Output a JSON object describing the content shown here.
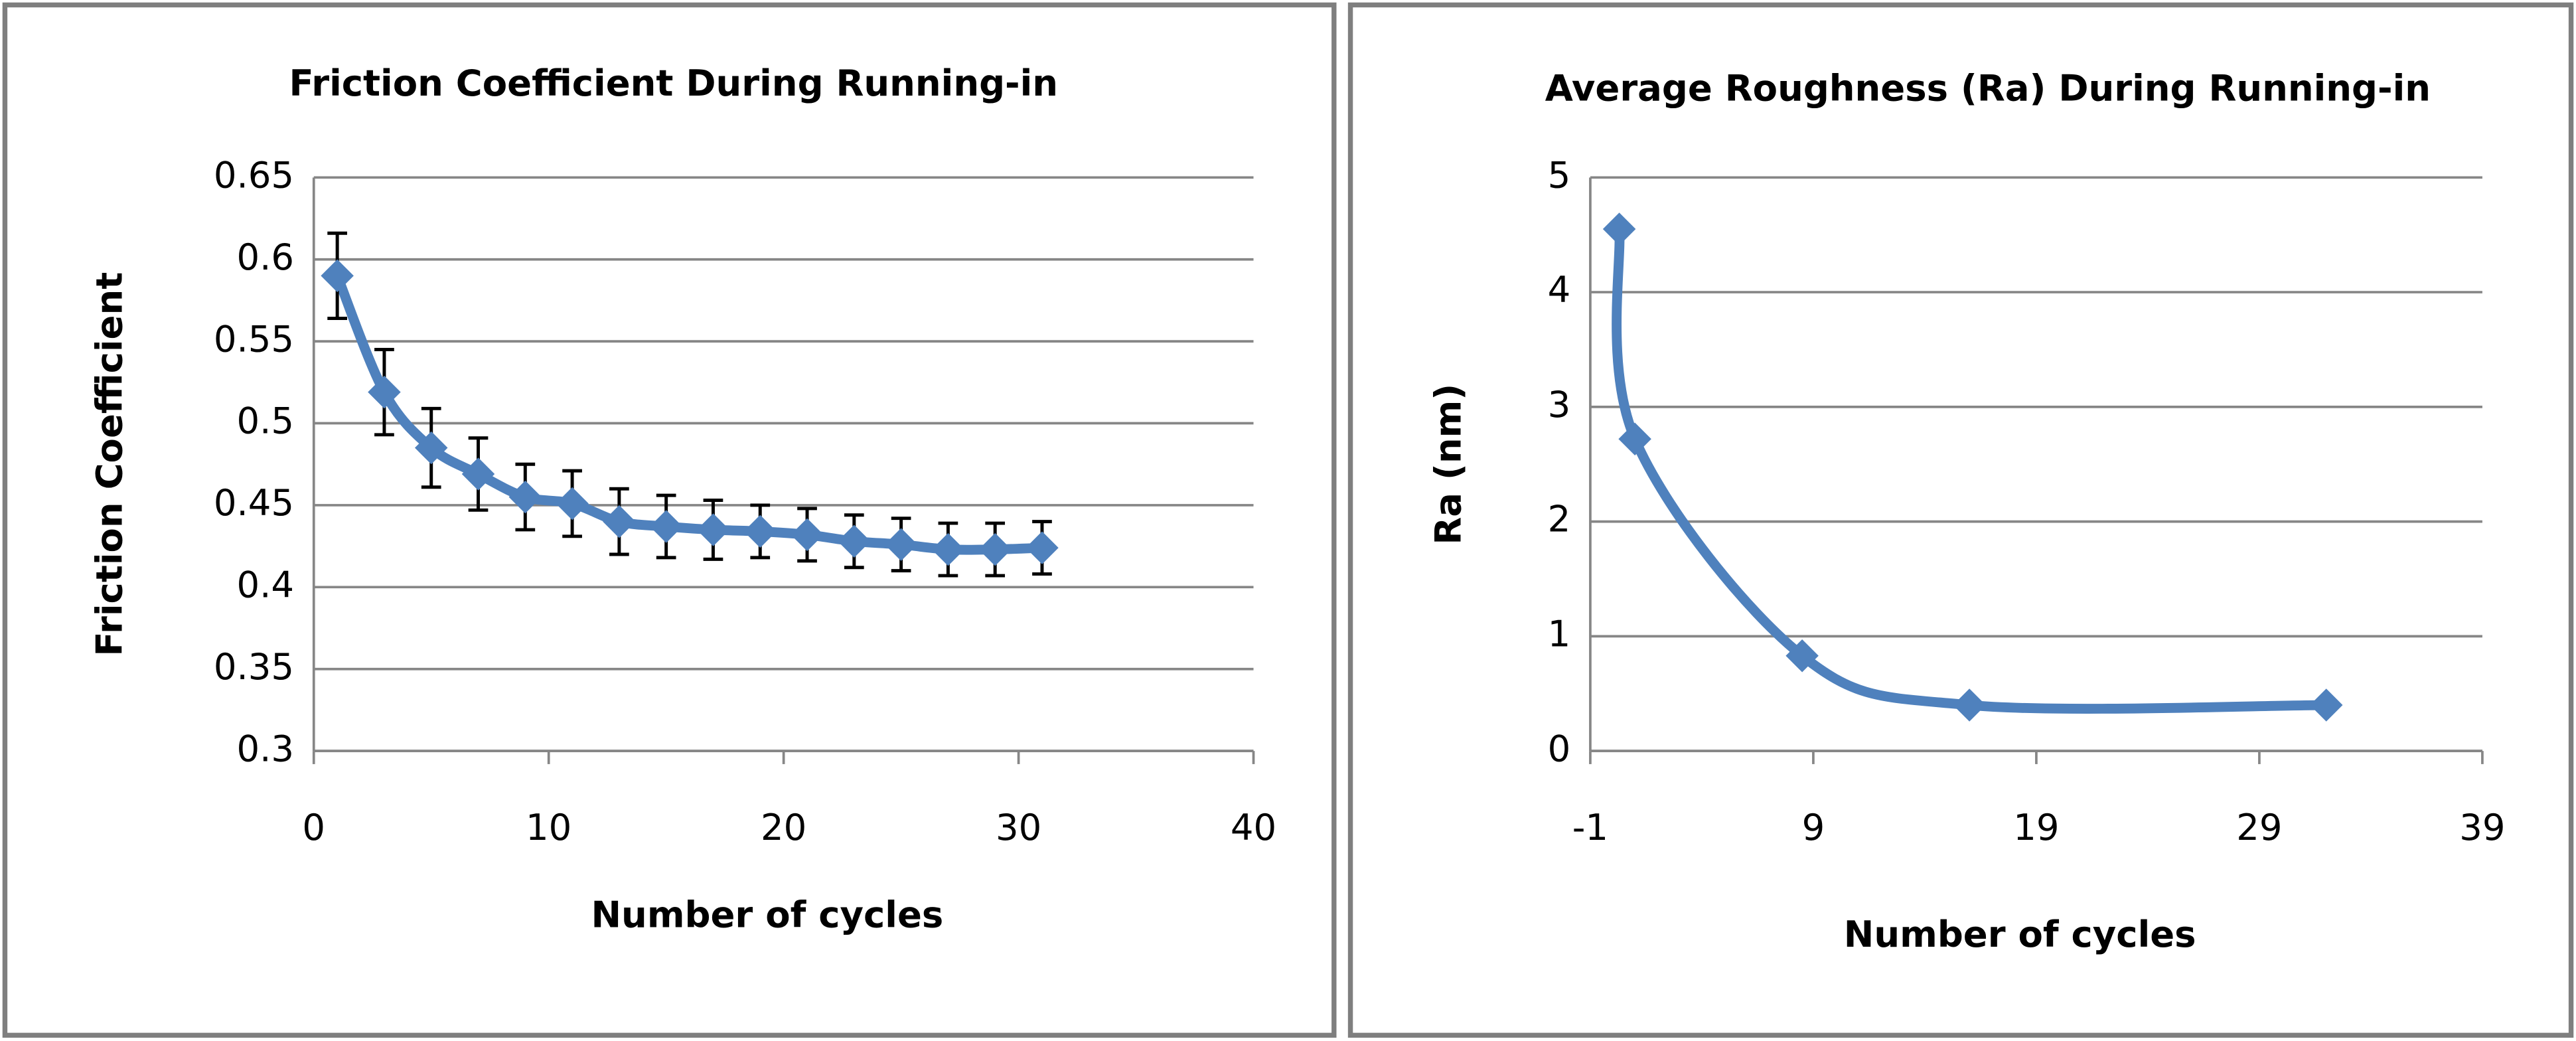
{
  "chart_data": [
    {
      "type": "line",
      "title": "Friction Coefficient During Running-in",
      "xlabel": "Number of cycles",
      "ylabel": "Friction Coefficient",
      "x": [
        1,
        3,
        5,
        7,
        9,
        11,
        13,
        15,
        17,
        19,
        21,
        23,
        25,
        27,
        29,
        31
      ],
      "values": [
        0.59,
        0.519,
        0.485,
        0.469,
        0.455,
        0.451,
        0.44,
        0.437,
        0.435,
        0.434,
        0.432,
        0.428,
        0.426,
        0.423,
        0.423,
        0.424
      ],
      "errors": [
        0.026,
        0.026,
        0.024,
        0.022,
        0.02,
        0.02,
        0.02,
        0.019,
        0.018,
        0.016,
        0.016,
        0.016,
        0.016,
        0.016,
        0.016,
        0.016
      ],
      "color": "#4f81bd",
      "xlim": [
        0,
        40
      ],
      "xticks": [
        0,
        10,
        20,
        30,
        40
      ],
      "ylim": [
        0.3,
        0.65
      ],
      "yticks": [
        0.3,
        0.35,
        0.4,
        0.45,
        0.5,
        0.55,
        0.6,
        0.65
      ],
      "grid": true,
      "smooth": true
    },
    {
      "type": "line",
      "title": "Average Roughness (Ra) During Running-in",
      "xlabel": "Number of cycles",
      "ylabel": "Ra (nm)",
      "x": [
        0.3,
        1,
        8.5,
        16,
        32
      ],
      "values": [
        4.55,
        2.72,
        0.83,
        0.4,
        0.4
      ],
      "color": "#4f81bd",
      "xlim": [
        -1,
        39
      ],
      "xticks": [
        -1,
        9,
        19,
        29,
        39
      ],
      "ylim": [
        0,
        5
      ],
      "yticks": [
        0,
        1,
        2,
        3,
        4,
        5
      ],
      "grid": true,
      "smooth": true
    }
  ]
}
